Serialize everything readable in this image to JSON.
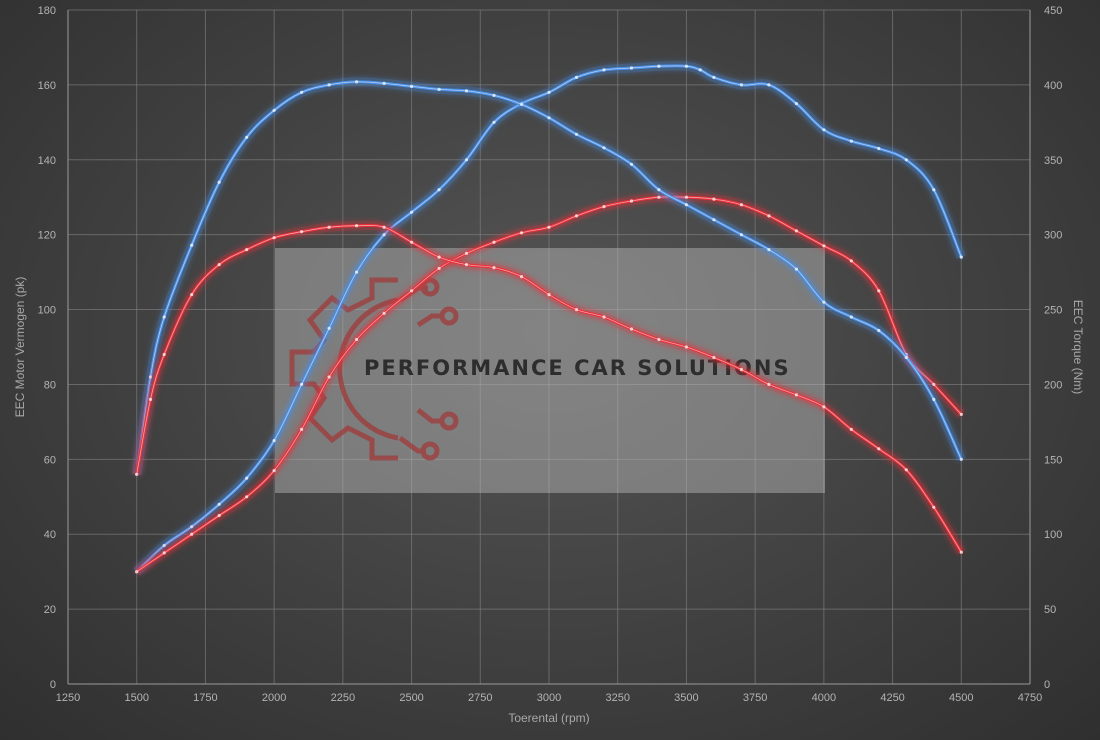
{
  "chart_data": {
    "type": "line",
    "xlabel": "Toerental (rpm)",
    "ylabel_left": "EEC Motor Vermogen (pk)",
    "ylabel_right": "EEC Torque (Nm)",
    "xlim": [
      1250,
      4750
    ],
    "x_ticks": [
      "1250",
      "1500",
      "1750",
      "2000",
      "2250",
      "2500",
      "2750",
      "3000",
      "3250",
      "3500",
      "3750",
      "4000",
      "4250",
      "4500",
      "4750"
    ],
    "ylim_left": [
      0,
      180
    ],
    "y_ticks_left": [
      "0",
      "20",
      "40",
      "60",
      "80",
      "100",
      "120",
      "140",
      "160",
      "180"
    ],
    "ylim_right": [
      0,
      450
    ],
    "y_ticks_right": [
      "0",
      "50",
      "100",
      "150",
      "200",
      "250",
      "300",
      "350",
      "400",
      "450"
    ],
    "grid": true,
    "colors": {
      "blue": "#4a90e8",
      "red": "#e8303a"
    },
    "series": [
      {
        "axis": "left",
        "color": "#4a90e8",
        "x": [
          1500,
          1600,
          1700,
          1800,
          1900,
          2000,
          2100,
          2200,
          2300,
          2400,
          2500,
          2600,
          2700,
          2800,
          2900,
          3000,
          3100,
          3200,
          3300,
          3400,
          3500,
          3550,
          3600,
          3700,
          3800,
          3900,
          4000,
          4100,
          4200,
          4300,
          4400,
          4500
        ],
        "y": [
          30,
          37,
          42,
          48,
          55,
          65,
          80,
          95,
          110,
          120,
          126,
          132,
          140,
          150,
          155,
          158,
          162,
          164,
          164.5,
          165,
          165,
          164,
          162,
          160,
          160,
          155,
          148,
          145,
          143,
          140,
          132,
          114
        ]
      },
      {
        "axis": "left",
        "color": "#e8303a",
        "x": [
          1500,
          1600,
          1700,
          1800,
          1900,
          2000,
          2100,
          2200,
          2300,
          2400,
          2500,
          2600,
          2700,
          2800,
          2900,
          3000,
          3100,
          3200,
          3300,
          3400,
          3500,
          3600,
          3700,
          3800,
          3900,
          4000,
          4100,
          4200,
          4300,
          4400,
          4500
        ],
        "y": [
          30,
          35,
          40,
          45,
          50,
          57,
          68,
          82,
          92,
          99,
          105,
          111,
          115,
          118,
          120.5,
          122,
          125,
          127.5,
          129,
          130,
          130,
          129.5,
          128,
          125,
          121,
          117,
          113,
          105,
          88,
          80,
          72
        ]
      },
      {
        "axis": "right",
        "color": "#4a90e8",
        "x": [
          1500,
          1550,
          1600,
          1700,
          1800,
          1900,
          2000,
          2100,
          2200,
          2300,
          2400,
          2500,
          2600,
          2700,
          2800,
          2900,
          3000,
          3100,
          3200,
          3300,
          3400,
          3500,
          3600,
          3700,
          3800,
          3900,
          4000,
          4100,
          4200,
          4300,
          4400,
          4500
        ],
        "y": [
          140,
          205,
          245,
          293,
          335,
          365,
          383,
          395,
          400,
          402,
          401,
          399,
          397,
          396,
          393,
          387,
          378,
          367,
          358,
          347,
          330,
          320,
          310,
          300,
          290,
          277,
          255,
          245,
          236,
          218,
          190,
          150
        ]
      },
      {
        "axis": "right",
        "color": "#e8303a",
        "x": [
          1500,
          1550,
          1600,
          1700,
          1800,
          1900,
          2000,
          2100,
          2200,
          2300,
          2400,
          2500,
          2600,
          2700,
          2800,
          2900,
          3000,
          3100,
          3200,
          3300,
          3400,
          3500,
          3600,
          3700,
          3800,
          3900,
          4000,
          4100,
          4200,
          4300,
          4400,
          4500
        ],
        "y": [
          140,
          190,
          220,
          260,
          280,
          290,
          298,
          302,
          305,
          306,
          305,
          295,
          285,
          280,
          278,
          272,
          260,
          250,
          245,
          237,
          230,
          225,
          218,
          210,
          200,
          193,
          185,
          170,
          157,
          143,
          118,
          88
        ]
      }
    ]
  },
  "watermark": {
    "text": "PERFORMANCE CAR SOLUTIONS",
    "logo_color": "#a03a3a"
  }
}
